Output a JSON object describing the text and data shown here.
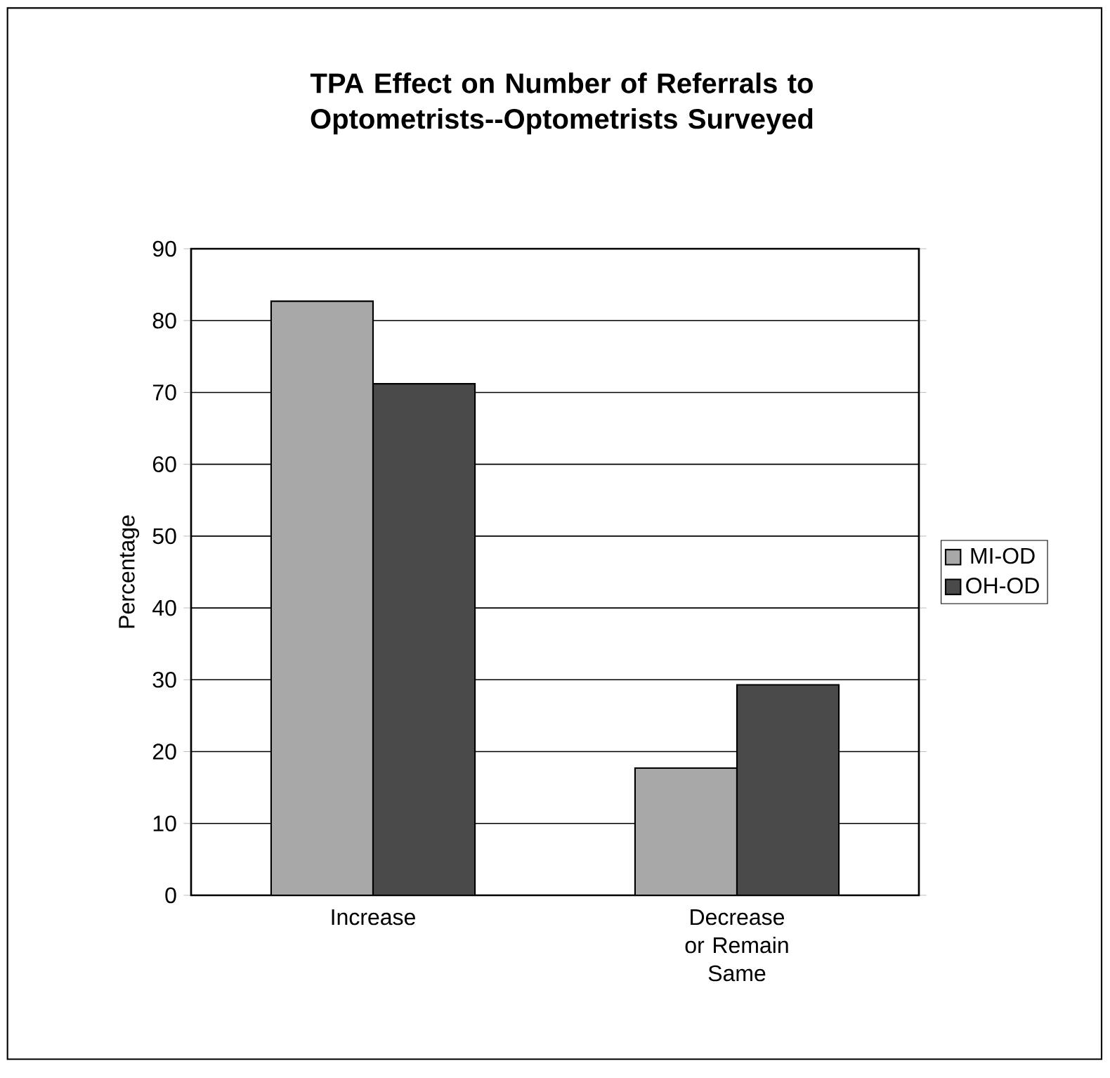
{
  "chart_data": {
    "type": "bar",
    "title": "TPA Effect on Number of Referrals to Optometrists--Optometrists Surveyed",
    "ylabel": "Percentage",
    "categories": [
      "Increase",
      "Decrease or Remain Same"
    ],
    "series": [
      {
        "name": "MI-OD",
        "color": "#a8a8a8",
        "values": [
          82.7,
          17.7
        ]
      },
      {
        "name": "OH-OD",
        "color": "#4a4a4a",
        "values": [
          71.2,
          29.3
        ]
      }
    ],
    "ylim": [
      0,
      90
    ],
    "yticks": [
      0,
      10,
      20,
      30,
      40,
      50,
      60,
      70,
      80,
      90
    ],
    "grid": "y",
    "legend": "right"
  }
}
